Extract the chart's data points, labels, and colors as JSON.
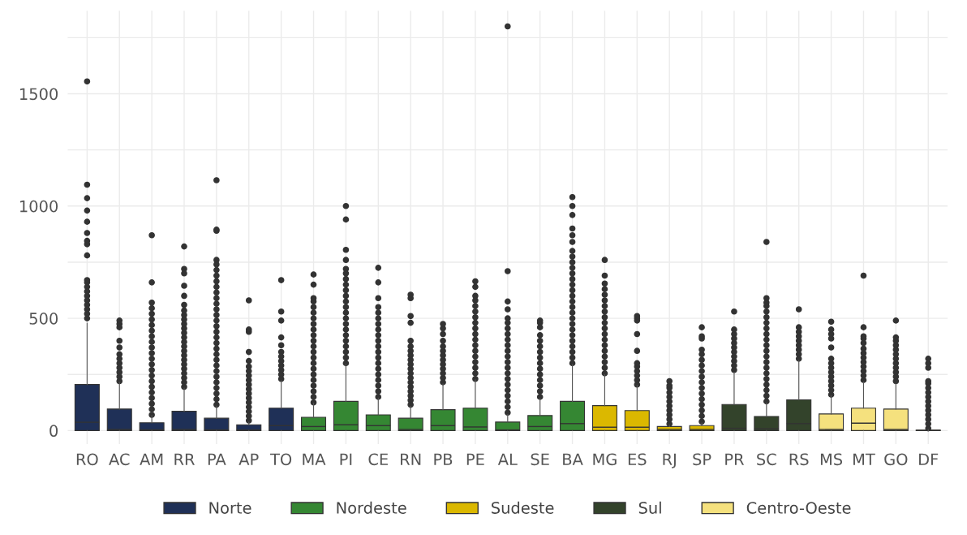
{
  "chart_data": {
    "type": "box",
    "categories": [
      "RO",
      "AC",
      "AM",
      "RR",
      "PA",
      "AP",
      "TO",
      "MA",
      "PI",
      "CE",
      "RN",
      "PB",
      "PE",
      "AL",
      "SE",
      "BA",
      "MG",
      "ES",
      "RJ",
      "SP",
      "PR",
      "SC",
      "RS",
      "MS",
      "MT",
      "GO",
      "DF"
    ],
    "ylim": [
      -60,
      1870
    ],
    "yticks": [
      0,
      {
        "value": 250,
        "label": null
      },
      500,
      {
        "value": 750,
        "label": null
      },
      1000,
      {
        "value": 1250,
        "label": null
      },
      1500,
      {
        "value": 1750,
        "label": null
      }
    ],
    "grid": true,
    "legend": "bottom",
    "marker": "circle",
    "series": [
      {
        "name": "Norte",
        "color": "#1f3057",
        "boxes": [
          {
            "q1": 0,
            "median": 37,
            "q3": 205,
            "high": 478,
            "outliers": [
              500,
              520,
              540,
              560,
              580,
              600,
              620,
              640,
              660,
              670,
              780,
              830,
              845,
              880,
              930,
              980,
              1035,
              1095,
              1555
            ]
          },
          {
            "q1": 0,
            "median": 5,
            "q3": 96,
            "high": 215,
            "outliers": [
              220,
              240,
              260,
              280,
              300,
              320,
              340,
              370,
              400,
              460,
              475,
              490
            ]
          },
          {
            "q1": 0,
            "median": 3,
            "q3": 35,
            "high": 67,
            "outliers": [
              70,
              95,
              120,
              145,
              170,
              195,
              220,
              245,
              270,
              295,
              320,
              345,
              370,
              395,
              420,
              445,
              470,
              495,
              520,
              545,
              570,
              660,
              870
            ]
          },
          {
            "q1": 0,
            "median": 5,
            "q3": 86,
            "high": 189,
            "outliers": [
              195,
              215,
              235,
              255,
              275,
              295,
              315,
              335,
              355,
              375,
              395,
              415,
              435,
              455,
              475,
              495,
              515,
              535,
              560,
              600,
              645,
              700,
              720,
              820
            ]
          },
          {
            "q1": 0,
            "median": 3,
            "q3": 55,
            "high": 109,
            "outliers": [
              115,
              140,
              165,
              190,
              215,
              240,
              265,
              290,
              315,
              340,
              365,
              390,
              415,
              440,
              465,
              490,
              515,
              540,
              565,
              590,
              615,
              640,
              665,
              690,
              715,
              740,
              760,
              890,
              895,
              1115
            ]
          },
          {
            "q1": 0,
            "median": 3,
            "q3": 26,
            "high": 37,
            "outliers": [
              45,
              65,
              85,
              105,
              125,
              145,
              165,
              185,
              205,
              225,
              245,
              265,
              285,
              310,
              350,
              440,
              450,
              580
            ]
          },
          {
            "q1": 0,
            "median": 22,
            "q3": 100,
            "high": 222,
            "outliers": [
              230,
              250,
              270,
              290,
              310,
              330,
              350,
              380,
              415,
              490,
              530,
              670
            ]
          },
          null,
          null,
          null,
          null,
          null,
          null,
          null,
          null,
          null,
          null,
          null,
          null,
          null,
          null,
          null,
          null,
          null,
          null,
          null,
          null
        ]
      },
      {
        "name": "Nordeste",
        "color": "#358733",
        "boxes": [
          null,
          null,
          null,
          null,
          null,
          null,
          null,
          {
            "q1": 0,
            "median": 18,
            "q3": 59,
            "high": 122,
            "outliers": [
              125,
              150,
              175,
              200,
              225,
              250,
              275,
              300,
              325,
              350,
              375,
              400,
              425,
              450,
              475,
              500,
              525,
              550,
              575,
              590,
              650,
              695
            ]
          },
          {
            "q1": 0,
            "median": 26,
            "q3": 130,
            "high": 294,
            "outliers": [
              300,
              325,
              350,
              375,
              400,
              425,
              450,
              475,
              500,
              525,
              550,
              575,
              600,
              625,
              650,
              675,
              700,
              720,
              760,
              805,
              940,
              1000
            ]
          },
          {
            "q1": 0,
            "median": 22,
            "q3": 70,
            "high": 145,
            "outliers": [
              150,
              175,
              200,
              225,
              250,
              275,
              300,
              325,
              350,
              375,
              400,
              425,
              450,
              475,
              500,
              525,
              550,
              590,
              660,
              725
            ]
          },
          {
            "q1": 0,
            "median": 5,
            "q3": 55,
            "high": 108,
            "outliers": [
              115,
              135,
              155,
              175,
              195,
              215,
              235,
              255,
              275,
              295,
              315,
              335,
              355,
              375,
              400,
              480,
              510,
              590,
              605
            ]
          },
          {
            "q1": 0,
            "median": 22,
            "q3": 93,
            "high": 207,
            "outliers": [
              215,
              235,
              255,
              275,
              295,
              315,
              335,
              355,
              375,
              400,
              430,
              455,
              475
            ]
          },
          {
            "q1": 0,
            "median": 16,
            "q3": 100,
            "high": 226,
            "outliers": [
              230,
              255,
              280,
              305,
              330,
              355,
              380,
              405,
              430,
              455,
              480,
              505,
              530,
              555,
              580,
              600,
              640,
              665
            ]
          },
          {
            "q1": 0,
            "median": 3,
            "q3": 38,
            "high": 72,
            "outliers": [
              80,
              105,
              130,
              155,
              180,
              205,
              230,
              255,
              280,
              305,
              330,
              355,
              380,
              405,
              430,
              455,
              480,
              500,
              540,
              575,
              710,
              1800
            ]
          },
          {
            "q1": 0,
            "median": 18,
            "q3": 67,
            "high": 142,
            "outliers": [
              150,
              175,
              200,
              225,
              250,
              275,
              300,
              325,
              350,
              375,
              400,
              425,
              460,
              480,
              490
            ]
          },
          {
            "q1": 0,
            "median": 31,
            "q3": 130,
            "high": 294,
            "outliers": [
              300,
              325,
              350,
              375,
              400,
              425,
              450,
              475,
              500,
              525,
              550,
              575,
              600,
              625,
              650,
              675,
              700,
              725,
              750,
              775,
              800,
              840,
              870,
              900,
              960,
              1000,
              1040
            ]
          },
          null,
          null,
          null,
          null,
          null,
          null,
          null,
          null,
          null,
          null,
          null
        ]
      },
      {
        "name": "Sudeste",
        "color": "#dbb800",
        "boxes": [
          null,
          null,
          null,
          null,
          null,
          null,
          null,
          null,
          null,
          null,
          null,
          null,
          null,
          null,
          null,
          null,
          {
            "q1": 0,
            "median": 15,
            "q3": 111,
            "high": 249,
            "outliers": [
              255,
              280,
              305,
              330,
              355,
              380,
              405,
              430,
              455,
              480,
              505,
              530,
              555,
              580,
              605,
              630,
              655,
              690,
              760
            ]
          },
          {
            "q1": 0,
            "median": 15,
            "q3": 89,
            "high": 201,
            "outliers": [
              205,
              225,
              245,
              265,
              285,
              300,
              355,
              430,
              490,
              500,
              510
            ]
          },
          {
            "q1": 0,
            "median": 5,
            "q3": 18,
            "high": 25,
            "outliers": [
              30,
              50,
              70,
              90,
              110,
              130,
              150,
              170,
              190,
              200,
              220
            ]
          },
          {
            "q1": 0,
            "median": 5,
            "q3": 22,
            "high": 34,
            "outliers": [
              40,
              65,
              90,
              115,
              140,
              165,
              190,
              215,
              240,
              265,
              290,
              315,
              340,
              360,
              410,
              420,
              460
            ]
          },
          null,
          null,
          null,
          null,
          null,
          null,
          null
        ]
      },
      {
        "name": "Sul",
        "color": "#33432b",
        "boxes": [
          null,
          null,
          null,
          null,
          null,
          null,
          null,
          null,
          null,
          null,
          null,
          null,
          null,
          null,
          null,
          null,
          null,
          null,
          null,
          null,
          {
            "q1": 0,
            "median": 10,
            "q3": 116,
            "high": 260,
            "outliers": [
              270,
              290,
              310,
              330,
              350,
              370,
              390,
              410,
              430,
              450,
              530
            ]
          },
          {
            "q1": 0,
            "median": 8,
            "q3": 63,
            "high": 123,
            "outliers": [
              130,
              155,
              180,
              205,
              230,
              255,
              280,
              305,
              330,
              355,
              380,
              405,
              430,
              455,
              480,
              505,
              530,
              555,
              570,
              590,
              840
            ]
          },
          {
            "q1": 0,
            "median": 31,
            "q3": 137,
            "high": 312,
            "outliers": [
              320,
              340,
              360,
              380,
              400,
              420,
              440,
              460,
              540
            ]
          },
          null,
          null,
          null,
          null
        ]
      },
      {
        "name": "Centro-Oeste",
        "color": "#f5e17e",
        "boxes": [
          null,
          null,
          null,
          null,
          null,
          null,
          null,
          null,
          null,
          null,
          null,
          null,
          null,
          null,
          null,
          null,
          null,
          null,
          null,
          null,
          null,
          null,
          null,
          {
            "q1": 0,
            "median": 5,
            "q3": 74,
            "high": 155,
            "outliers": [
              160,
              180,
              200,
              220,
              240,
              260,
              280,
              300,
              320,
              370,
              410,
              430,
              450,
              485
            ]
          },
          {
            "q1": 0,
            "median": 33,
            "q3": 100,
            "high": 216,
            "outliers": [
              225,
              245,
              265,
              285,
              305,
              325,
              345,
              365,
              390,
              410,
              420,
              460,
              690
            ]
          },
          {
            "q1": 0,
            "median": 5,
            "q3": 96,
            "high": 211,
            "outliers": [
              220,
              240,
              260,
              280,
              300,
              320,
              340,
              360,
              380,
              400,
              415,
              490
            ]
          },
          {
            "q1": 0,
            "median": 1,
            "q3": 2,
            "high": 5,
            "outliers": [
              10,
              30,
              50,
              70,
              90,
              110,
              130,
              150,
              170,
              190,
              210,
              220,
              280,
              300,
              320
            ]
          }
        ]
      }
    ]
  }
}
